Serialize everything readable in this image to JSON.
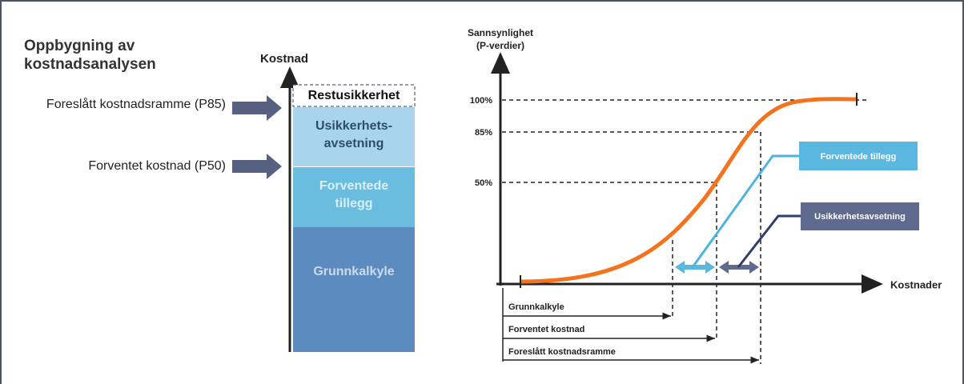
{
  "title_lines": [
    "Oppbygning av",
    "kostnadsanalysen"
  ],
  "left": {
    "axis_label": "Kostnad",
    "arrows": [
      "Foreslått kostnadsramme (P85)",
      "Forventet kostnad (P50)"
    ],
    "blocks": [
      {
        "label": [
          "Restusikkerhet"
        ]
      },
      {
        "label": [
          "Usikkerhets-",
          "avsetning"
        ]
      },
      {
        "label": [
          "Forventede",
          "tillegg"
        ]
      },
      {
        "label": [
          "Grunnkalkyle"
        ]
      }
    ]
  },
  "right": {
    "y_axis_label": [
      "Sannsynlighet",
      "(P-verdier)"
    ],
    "x_axis_label": "Kostnader",
    "levels": [
      "100%",
      "85%",
      "50%"
    ],
    "callouts": [
      "Forventede tillegg",
      "Usikkerhetsavsetning"
    ],
    "brackets": [
      "Grunnkalkyle",
      "Forventet kostnad",
      "Foreslått kostnadsramme"
    ]
  }
}
